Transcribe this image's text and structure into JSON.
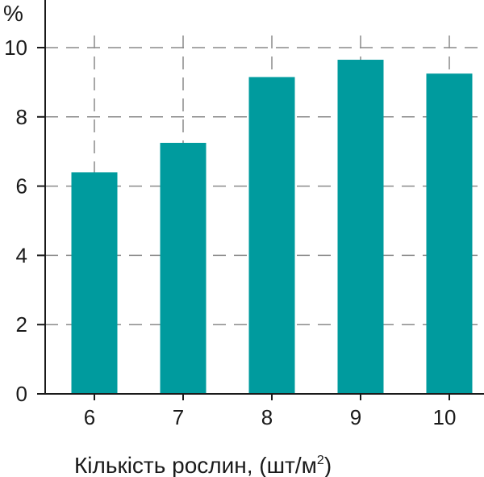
{
  "chart_data": {
    "type": "bar",
    "categories": [
      "6",
      "7",
      "8",
      "9",
      "10"
    ],
    "values": [
      6.4,
      7.25,
      9.15,
      9.65,
      9.25
    ],
    "ylabel": "%",
    "xlabel": "Кількість рослин,  (шт/м",
    "xlabel_sup": "2",
    "xlabel_close": ")",
    "yticks": [
      0,
      2,
      4,
      6,
      8,
      10
    ],
    "ylim": [
      0,
      11.2
    ],
    "grid": true,
    "bar_color": "#009b9e",
    "grid_color": "#8a8a8a",
    "axis_color": "#1a1a1a"
  }
}
